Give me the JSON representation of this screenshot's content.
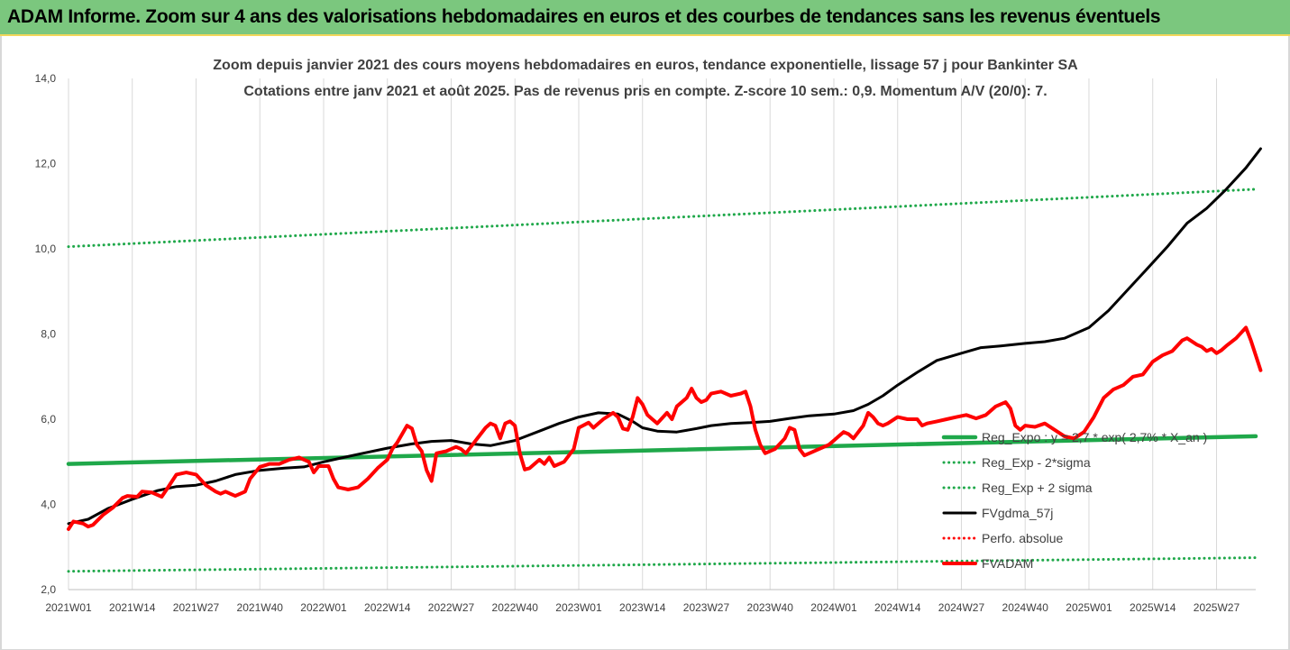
{
  "banner": {
    "title": "ADAM Informe. Zoom sur 4 ans des valorisations hebdomadaires en euros et des courbes de tendances sans les revenus éventuels"
  },
  "chart_data": {
    "type": "line",
    "title": "Zoom depuis janvier 2021 des cours moyens hebdomadaires en euros, tendance exponentielle, lissage 57 j pour Bankinter SA",
    "subtitle": "Cotations entre janv 2021 et août 2025.  Pas de revenus pris en compte. Z-score 10 sem.: 0,9. Momentum A/V (20/0): 7.",
    "ylim": [
      2.0,
      14.0
    ],
    "y_ticks": [
      "2,0",
      "4,0",
      "6,0",
      "8,0",
      "10,0",
      "12,0",
      "14,0"
    ],
    "grid": "vertical",
    "x_ticks": [
      {
        "index": 0,
        "label": "2021W01"
      },
      {
        "index": 13,
        "label": "2021W14"
      },
      {
        "index": 26,
        "label": "2021W27"
      },
      {
        "index": 39,
        "label": "2021W40"
      },
      {
        "index": 52,
        "label": "2022W01"
      },
      {
        "index": 65,
        "label": "2022W14"
      },
      {
        "index": 78,
        "label": "2022W27"
      },
      {
        "index": 91,
        "label": "2022W40"
      },
      {
        "index": 104,
        "label": "2023W01"
      },
      {
        "index": 117,
        "label": "2023W14"
      },
      {
        "index": 130,
        "label": "2023W27"
      },
      {
        "index": 143,
        "label": "2023W40"
      },
      {
        "index": 156,
        "label": "2024W01"
      },
      {
        "index": 169,
        "label": "2024W14"
      },
      {
        "index": 182,
        "label": "2024W27"
      },
      {
        "index": 195,
        "label": "2024W40"
      },
      {
        "index": 208,
        "label": "2025W01"
      },
      {
        "index": 221,
        "label": "2025W14"
      },
      {
        "index": 234,
        "label": "2025W27"
      }
    ],
    "n_weeks": 243,
    "legend_position": "bottom-right",
    "series": [
      {
        "name": "Reg_Expo : y = 2,7 * exp( 2,7% *  X_an )",
        "color": "#1fa84a",
        "style": "solid-thick",
        "points": [
          [
            0,
            4.95
          ],
          [
            242,
            5.6
          ]
        ]
      },
      {
        "name": "Reg_Exp - 2*sigma",
        "color": "#1fa84a",
        "style": "dotted",
        "points": [
          [
            0,
            2.43
          ],
          [
            242,
            2.75
          ]
        ]
      },
      {
        "name": "Reg_Exp + 2 sigma",
        "color": "#1fa84a",
        "style": "dotted",
        "points": [
          [
            0,
            10.05
          ],
          [
            242,
            11.4
          ]
        ]
      },
      {
        "name": "FVgdma_57j",
        "color": "#000000",
        "style": "solid",
        "points": [
          [
            0,
            3.55
          ],
          [
            4,
            3.65
          ],
          [
            8,
            3.9
          ],
          [
            13,
            4.12
          ],
          [
            18,
            4.32
          ],
          [
            22,
            4.42
          ],
          [
            26,
            4.45
          ],
          [
            30,
            4.55
          ],
          [
            34,
            4.7
          ],
          [
            39,
            4.8
          ],
          [
            44,
            4.85
          ],
          [
            48,
            4.88
          ],
          [
            52,
            5.0
          ],
          [
            56,
            5.1
          ],
          [
            60,
            5.2
          ],
          [
            65,
            5.32
          ],
          [
            70,
            5.42
          ],
          [
            74,
            5.48
          ],
          [
            78,
            5.5
          ],
          [
            82,
            5.42
          ],
          [
            86,
            5.38
          ],
          [
            91,
            5.5
          ],
          [
            96,
            5.72
          ],
          [
            100,
            5.9
          ],
          [
            104,
            6.05
          ],
          [
            108,
            6.15
          ],
          [
            112,
            6.12
          ],
          [
            115,
            5.95
          ],
          [
            117,
            5.8
          ],
          [
            120,
            5.72
          ],
          [
            124,
            5.7
          ],
          [
            128,
            5.78
          ],
          [
            131,
            5.85
          ],
          [
            135,
            5.9
          ],
          [
            139,
            5.92
          ],
          [
            143,
            5.95
          ],
          [
            147,
            6.02
          ],
          [
            151,
            6.08
          ],
          [
            156,
            6.12
          ],
          [
            160,
            6.2
          ],
          [
            163,
            6.35
          ],
          [
            166,
            6.55
          ],
          [
            169,
            6.8
          ],
          [
            173,
            7.1
          ],
          [
            177,
            7.38
          ],
          [
            182,
            7.55
          ],
          [
            186,
            7.68
          ],
          [
            190,
            7.72
          ],
          [
            195,
            7.78
          ],
          [
            199,
            7.82
          ],
          [
            203,
            7.9
          ],
          [
            208,
            8.15
          ],
          [
            212,
            8.55
          ],
          [
            216,
            9.05
          ],
          [
            220,
            9.55
          ],
          [
            224,
            10.05
          ],
          [
            228,
            10.6
          ],
          [
            232,
            10.95
          ],
          [
            236,
            11.4
          ],
          [
            240,
            11.9
          ],
          [
            243,
            12.35
          ]
        ]
      },
      {
        "name": "Perfo. absolue",
        "color": "#ff0000",
        "style": "dotted",
        "points": []
      },
      {
        "name": "FVADAM",
        "color": "#ff0000",
        "style": "solid-thick",
        "points": [
          [
            0,
            3.42
          ],
          [
            1,
            3.6
          ],
          [
            3,
            3.55
          ],
          [
            4,
            3.48
          ],
          [
            5,
            3.52
          ],
          [
            7,
            3.75
          ],
          [
            9,
            3.92
          ],
          [
            11,
            4.15
          ],
          [
            12,
            4.2
          ],
          [
            14,
            4.18
          ],
          [
            15,
            4.3
          ],
          [
            17,
            4.28
          ],
          [
            19,
            4.18
          ],
          [
            20,
            4.35
          ],
          [
            22,
            4.7
          ],
          [
            24,
            4.75
          ],
          [
            26,
            4.7
          ],
          [
            28,
            4.45
          ],
          [
            30,
            4.3
          ],
          [
            31,
            4.25
          ],
          [
            32,
            4.3
          ],
          [
            34,
            4.2
          ],
          [
            36,
            4.3
          ],
          [
            37,
            4.6
          ],
          [
            39,
            4.88
          ],
          [
            41,
            4.95
          ],
          [
            43,
            4.95
          ],
          [
            45,
            5.05
          ],
          [
            47,
            5.1
          ],
          [
            49,
            5.0
          ],
          [
            50,
            4.75
          ],
          [
            51,
            4.9
          ],
          [
            53,
            4.9
          ],
          [
            54,
            4.6
          ],
          [
            55,
            4.4
          ],
          [
            57,
            4.35
          ],
          [
            59,
            4.4
          ],
          [
            61,
            4.6
          ],
          [
            63,
            4.85
          ],
          [
            65,
            5.05
          ],
          [
            66,
            5.3
          ],
          [
            67,
            5.45
          ],
          [
            68,
            5.65
          ],
          [
            69,
            5.85
          ],
          [
            70,
            5.78
          ],
          [
            71,
            5.4
          ],
          [
            72,
            5.25
          ],
          [
            73,
            4.8
          ],
          [
            74,
            4.55
          ],
          [
            75,
            5.2
          ],
          [
            77,
            5.25
          ],
          [
            79,
            5.35
          ],
          [
            80,
            5.3
          ],
          [
            81,
            5.2
          ],
          [
            83,
            5.5
          ],
          [
            85,
            5.8
          ],
          [
            86,
            5.9
          ],
          [
            87,
            5.85
          ],
          [
            88,
            5.55
          ],
          [
            89,
            5.9
          ],
          [
            90,
            5.95
          ],
          [
            91,
            5.85
          ],
          [
            92,
            5.2
          ],
          [
            93,
            4.82
          ],
          [
            94,
            4.85
          ],
          [
            96,
            5.05
          ],
          [
            97,
            4.95
          ],
          [
            98,
            5.1
          ],
          [
            99,
            4.9
          ],
          [
            101,
            5.0
          ],
          [
            103,
            5.3
          ],
          [
            104,
            5.8
          ],
          [
            106,
            5.92
          ],
          [
            107,
            5.8
          ],
          [
            109,
            6.0
          ],
          [
            111,
            6.15
          ],
          [
            112,
            6.05
          ],
          [
            113,
            5.78
          ],
          [
            114,
            5.75
          ],
          [
            115,
            6.05
          ],
          [
            116,
            6.5
          ],
          [
            117,
            6.35
          ],
          [
            118,
            6.1
          ],
          [
            119,
            6.0
          ],
          [
            120,
            5.9
          ],
          [
            122,
            6.15
          ],
          [
            123,
            6.0
          ],
          [
            124,
            6.3
          ],
          [
            126,
            6.5
          ],
          [
            127,
            6.72
          ],
          [
            128,
            6.5
          ],
          [
            129,
            6.4
          ],
          [
            130,
            6.45
          ],
          [
            131,
            6.6
          ],
          [
            133,
            6.65
          ],
          [
            135,
            6.55
          ],
          [
            137,
            6.6
          ],
          [
            138,
            6.65
          ],
          [
            139,
            6.3
          ],
          [
            140,
            5.75
          ],
          [
            141,
            5.4
          ],
          [
            142,
            5.2
          ],
          [
            144,
            5.3
          ],
          [
            146,
            5.55
          ],
          [
            147,
            5.8
          ],
          [
            148,
            5.75
          ],
          [
            149,
            5.3
          ],
          [
            150,
            5.15
          ],
          [
            151,
            5.2
          ],
          [
            153,
            5.3
          ],
          [
            155,
            5.4
          ],
          [
            156,
            5.5
          ],
          [
            157,
            5.6
          ],
          [
            158,
            5.7
          ],
          [
            159,
            5.65
          ],
          [
            160,
            5.55
          ],
          [
            162,
            5.85
          ],
          [
            163,
            6.15
          ],
          [
            164,
            6.05
          ],
          [
            165,
            5.9
          ],
          [
            166,
            5.85
          ],
          [
            167,
            5.9
          ],
          [
            169,
            6.05
          ],
          [
            171,
            6.0
          ],
          [
            173,
            6.0
          ],
          [
            174,
            5.85
          ],
          [
            175,
            5.9
          ],
          [
            177,
            5.95
          ],
          [
            179,
            6.0
          ],
          [
            181,
            6.05
          ],
          [
            183,
            6.1
          ],
          [
            185,
            6.02
          ],
          [
            187,
            6.1
          ],
          [
            189,
            6.3
          ],
          [
            191,
            6.4
          ],
          [
            192,
            6.25
          ],
          [
            193,
            5.85
          ],
          [
            194,
            5.75
          ],
          [
            195,
            5.85
          ],
          [
            197,
            5.82
          ],
          [
            199,
            5.9
          ],
          [
            201,
            5.75
          ],
          [
            203,
            5.6
          ],
          [
            205,
            5.55
          ],
          [
            207,
            5.7
          ],
          [
            209,
            6.05
          ],
          [
            211,
            6.5
          ],
          [
            213,
            6.7
          ],
          [
            215,
            6.8
          ],
          [
            217,
            7.0
          ],
          [
            219,
            7.05
          ],
          [
            221,
            7.35
          ],
          [
            223,
            7.5
          ],
          [
            225,
            7.6
          ],
          [
            227,
            7.85
          ],
          [
            228,
            7.9
          ],
          [
            230,
            7.75
          ],
          [
            231,
            7.7
          ],
          [
            232,
            7.6
          ],
          [
            233,
            7.65
          ],
          [
            234,
            7.55
          ],
          [
            235,
            7.62
          ],
          [
            236,
            7.72
          ],
          [
            238,
            7.9
          ],
          [
            240,
            8.15
          ],
          [
            241,
            7.85
          ],
          [
            242,
            7.5
          ],
          [
            243,
            7.15
          ]
        ]
      }
    ]
  },
  "legend": {
    "items": [
      {
        "label": "Reg_Expo : y = 2,7 * exp( 2,7% *  X_an )"
      },
      {
        "label": "Reg_Exp - 2*sigma"
      },
      {
        "label": "Reg_Exp + 2 sigma"
      },
      {
        "label": "FVgdma_57j"
      },
      {
        "label": "Perfo. absolue"
      },
      {
        "label": "FVADAM"
      }
    ]
  }
}
